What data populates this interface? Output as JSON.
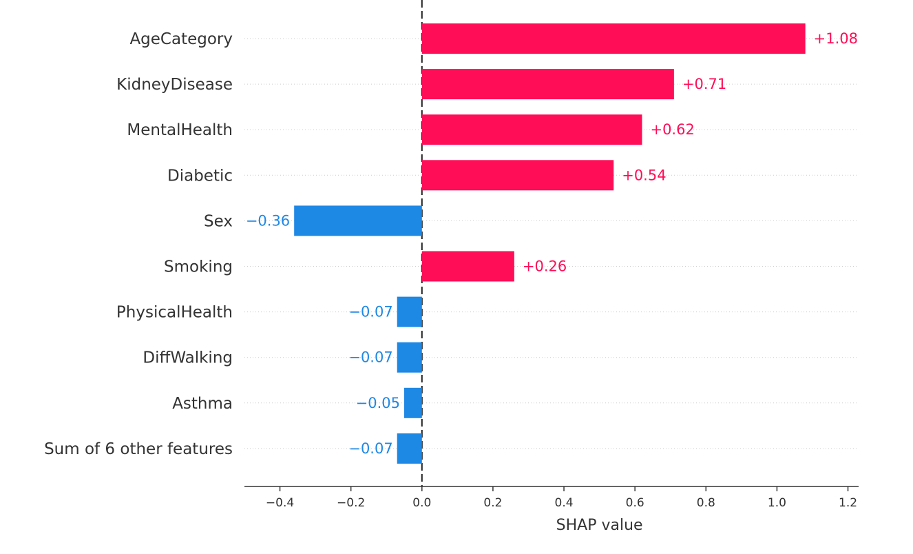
{
  "chart_data": {
    "type": "bar",
    "orientation": "horizontal",
    "categories": [
      "AgeCategory",
      "KidneyDisease",
      "MentalHealth",
      "Diabetic",
      "Sex",
      "Smoking",
      "PhysicalHealth",
      "DiffWalking",
      "Asthma",
      "Sum of 6 other features"
    ],
    "values": [
      1.08,
      0.71,
      0.62,
      0.54,
      -0.36,
      0.26,
      -0.07,
      -0.07,
      -0.05,
      -0.07
    ],
    "value_labels": [
      "+1.08",
      "+0.71",
      "+0.62",
      "+0.54",
      "−0.36",
      "+0.26",
      "−0.07",
      "−0.07",
      "−0.05",
      "−0.07"
    ],
    "xlabel": "SHAP value",
    "ylabel": "",
    "xlim": [
      -0.5,
      1.23
    ],
    "xticks": [
      -0.4,
      -0.2,
      0.0,
      0.2,
      0.4,
      0.6,
      0.8,
      1.0,
      1.2
    ],
    "xtick_labels": [
      "−0.4",
      "−0.2",
      "0.0",
      "0.2",
      "0.4",
      "0.6",
      "0.8",
      "1.0",
      "1.2"
    ],
    "colors": {
      "positive": "#ff0d57",
      "negative": "#1e88e5",
      "positive_text": "#ff0d57",
      "negative_text": "#1e88e5"
    },
    "grid": true,
    "zero_line": true
  }
}
